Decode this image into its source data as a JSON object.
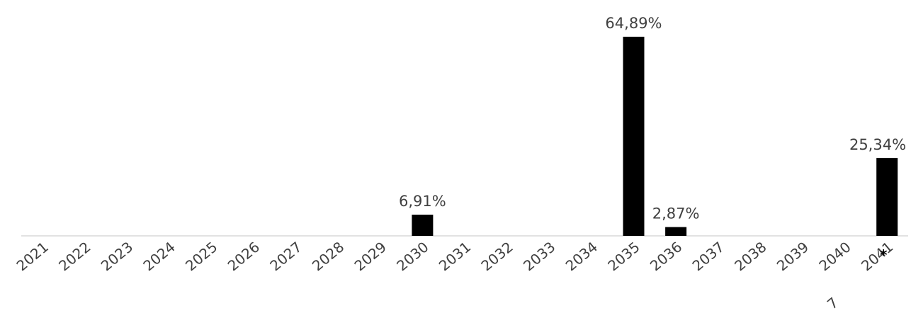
{
  "chart_data": {
    "type": "bar",
    "categories": [
      "2021",
      "2022",
      "2023",
      "2024",
      "2025",
      "2026",
      "2027",
      "2028",
      "2029",
      "2030",
      "2031",
      "2032",
      "2033",
      "2034",
      "2035",
      "2036",
      "2037",
      "2038",
      "2039",
      "2040",
      "2041"
    ],
    "values": [
      null,
      null,
      null,
      null,
      null,
      null,
      null,
      null,
      null,
      6.91,
      null,
      null,
      null,
      null,
      64.89,
      2.87,
      null,
      null,
      null,
      null,
      25.34
    ],
    "data_labels": [
      "",
      "",
      "",
      "",
      "",
      "",
      "",
      "",
      "",
      "6,91%",
      "",
      "",
      "",
      "",
      "64,89%",
      "2,87%",
      "",
      "",
      "",
      "",
      "25,34%"
    ],
    "footnote_marker": "*",
    "stray_glyph": "7",
    "ylim": [
      0,
      64.89
    ],
    "grid": false,
    "legend": "none",
    "colors": {
      "bar": "#000000",
      "text": "#404040",
      "axis": "#d9d9d9"
    }
  }
}
